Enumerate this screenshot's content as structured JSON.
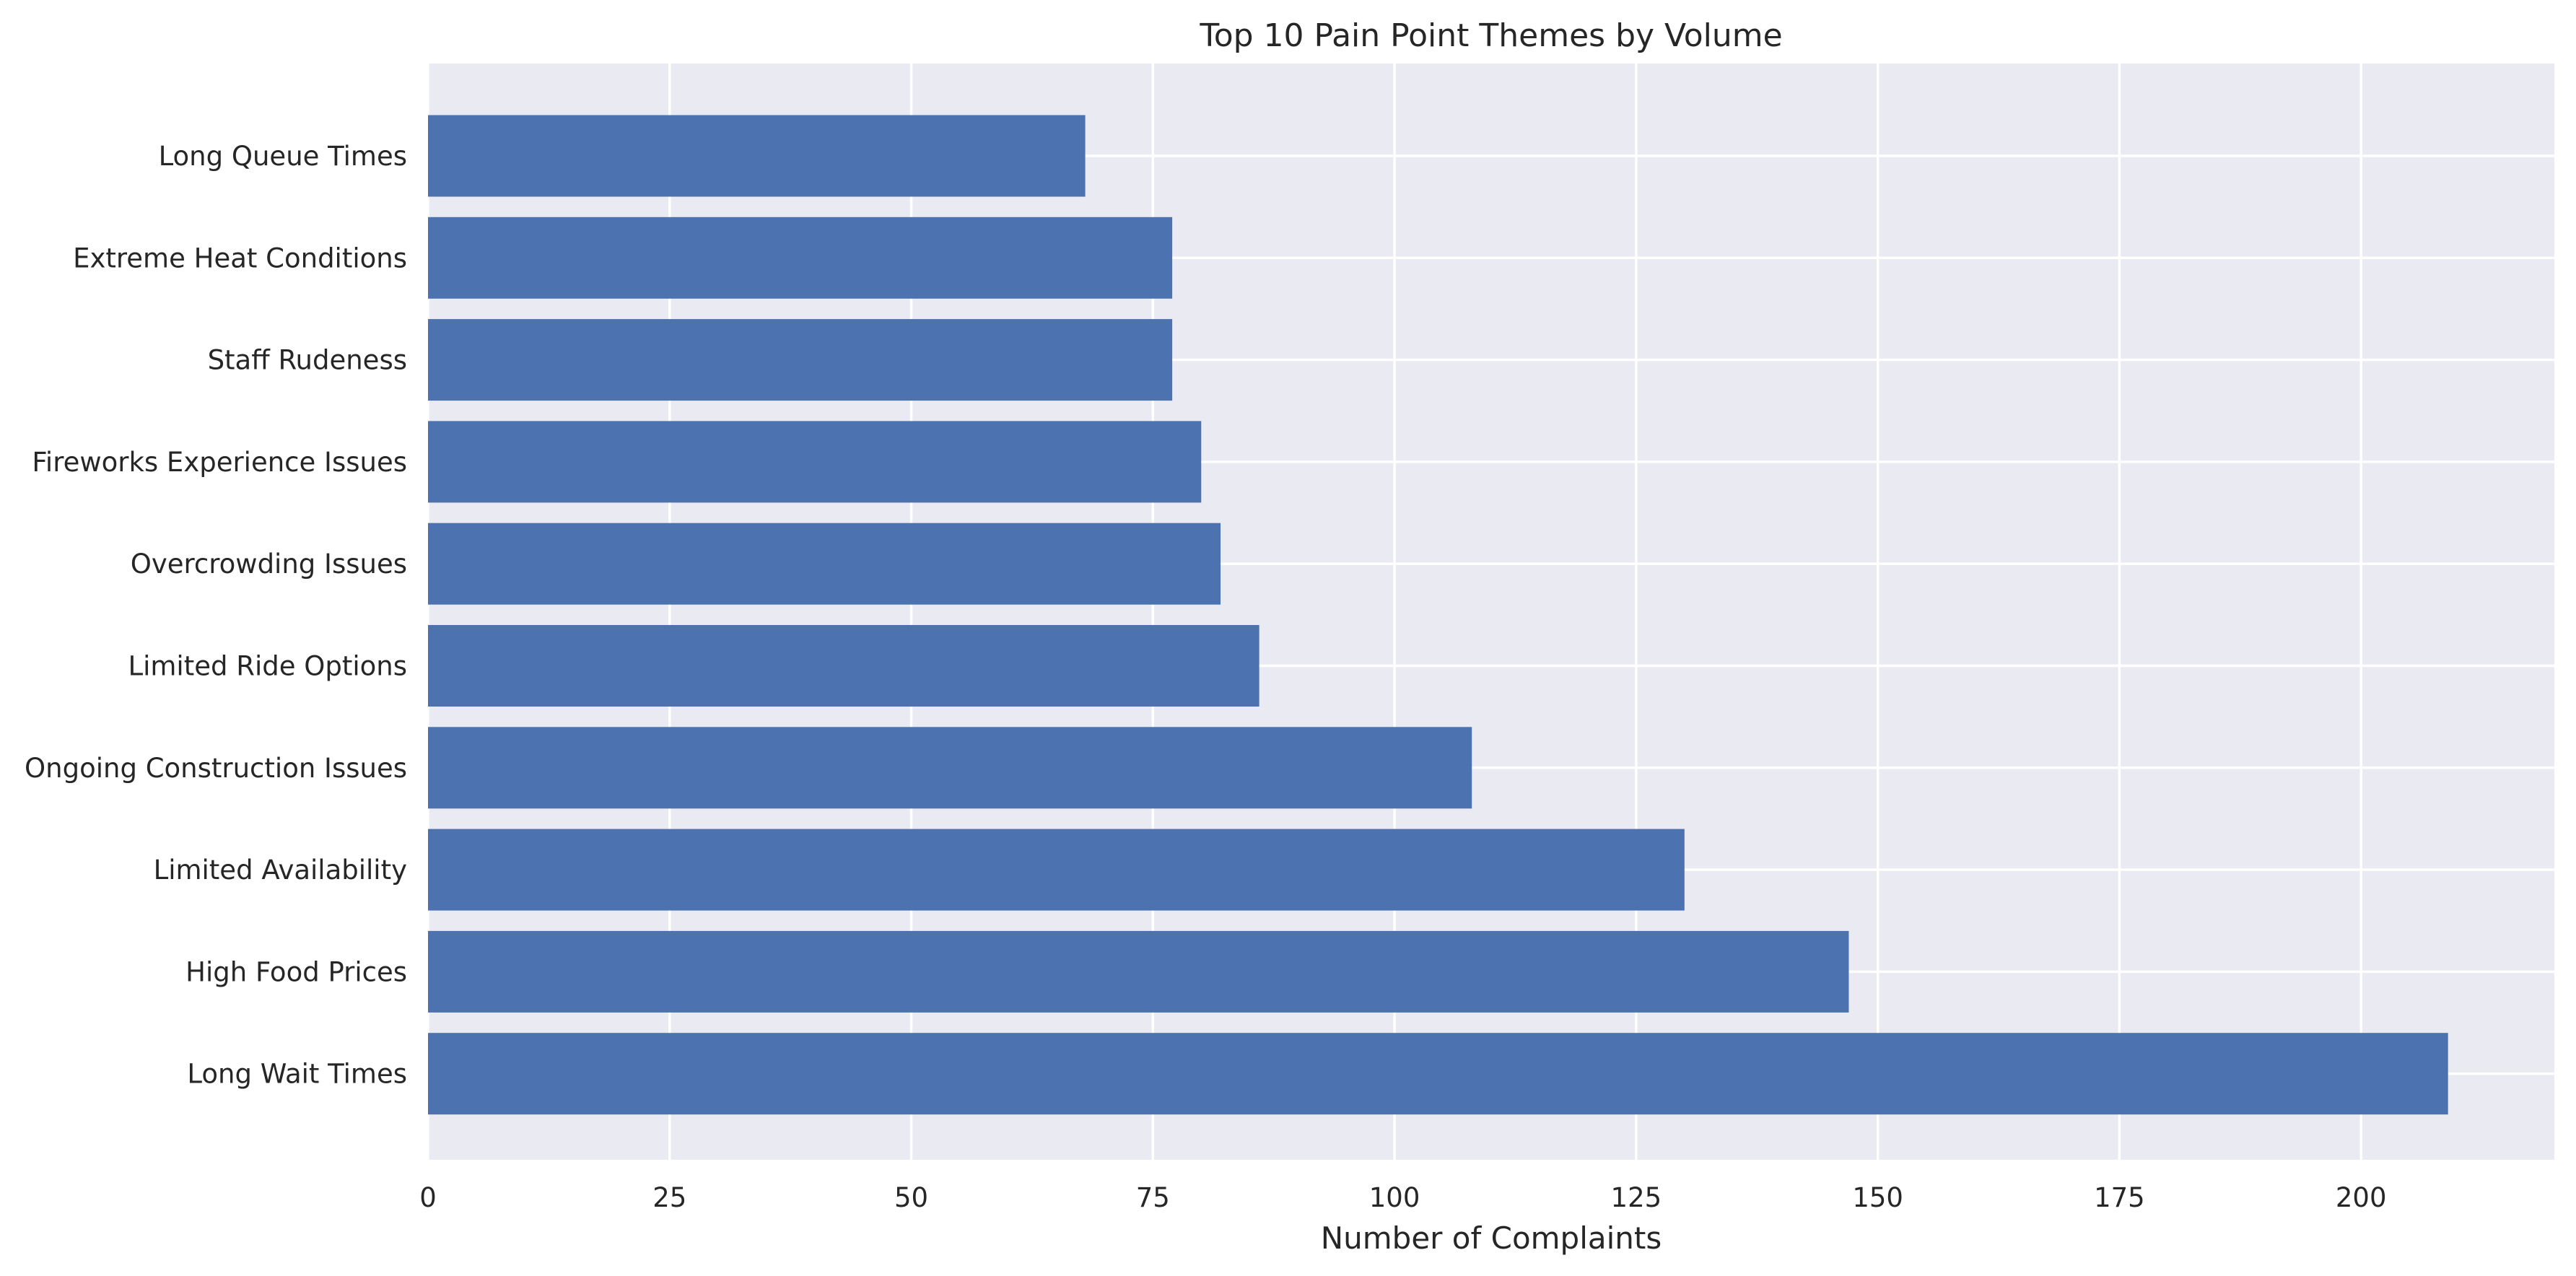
{
  "chart_data": {
    "type": "bar",
    "orientation": "horizontal",
    "title": "Top 10 Pain Point Themes by Volume",
    "xlabel": "Number of Complaints",
    "ylabel": "",
    "xlim": [
      0,
      220
    ],
    "x_ticks": [
      0,
      25,
      50,
      75,
      100,
      125,
      150,
      175,
      200
    ],
    "grid": true,
    "bar_color": "#4c72b0",
    "background_color": "#eaeaf2",
    "categories": [
      "Long Queue Times",
      "Extreme Heat Conditions",
      "Staff Rudeness",
      "Fireworks Experience Issues",
      "Overcrowding Issues",
      "Limited Ride Options",
      "Ongoing Construction Issues",
      "Limited Availability",
      "High Food Prices",
      "Long Wait Times"
    ],
    "values": [
      68,
      77,
      77,
      80,
      82,
      86,
      108,
      130,
      147,
      209
    ]
  }
}
